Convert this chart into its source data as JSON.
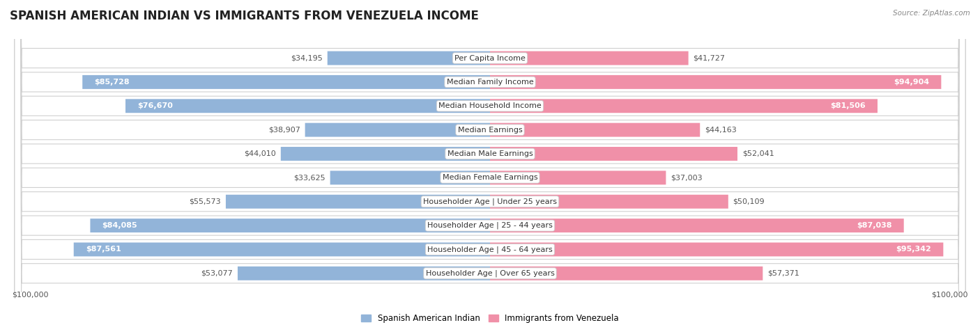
{
  "title": "SPANISH AMERICAN INDIAN VS IMMIGRANTS FROM VENEZUELA INCOME",
  "source": "Source: ZipAtlas.com",
  "categories": [
    "Per Capita Income",
    "Median Family Income",
    "Median Household Income",
    "Median Earnings",
    "Median Male Earnings",
    "Median Female Earnings",
    "Householder Age | Under 25 years",
    "Householder Age | 25 - 44 years",
    "Householder Age | 45 - 64 years",
    "Householder Age | Over 65 years"
  ],
  "left_values": [
    34195,
    85728,
    76670,
    38907,
    44010,
    33625,
    55573,
    84085,
    87561,
    53077
  ],
  "right_values": [
    41727,
    94904,
    81506,
    44163,
    52041,
    37003,
    50109,
    87038,
    95342,
    57371
  ],
  "left_labels": [
    "$34,195",
    "$85,728",
    "$76,670",
    "$38,907",
    "$44,010",
    "$33,625",
    "$55,573",
    "$84,085",
    "$87,561",
    "$53,077"
  ],
  "right_labels": [
    "$41,727",
    "$94,904",
    "$81,506",
    "$44,163",
    "$52,041",
    "$37,003",
    "$50,109",
    "$87,038",
    "$95,342",
    "$57,371"
  ],
  "left_color": "#92B4D9",
  "right_color": "#F090A8",
  "left_color_dark": "#6699CC",
  "right_color_dark": "#E8678A",
  "bar_height": 0.58,
  "max_value": 100000,
  "legend_left": "Spanish American Indian",
  "legend_right": "Immigrants from Venezuela",
  "background_color": "#ffffff",
  "row_bg_color": "#ffffff",
  "row_border_color": "#d0d0d0",
  "title_fontsize": 12,
  "label_fontsize": 8,
  "category_fontsize": 8,
  "axis_label_left": "$100,000",
  "axis_label_right": "$100,000",
  "inside_label_threshold": 60000
}
